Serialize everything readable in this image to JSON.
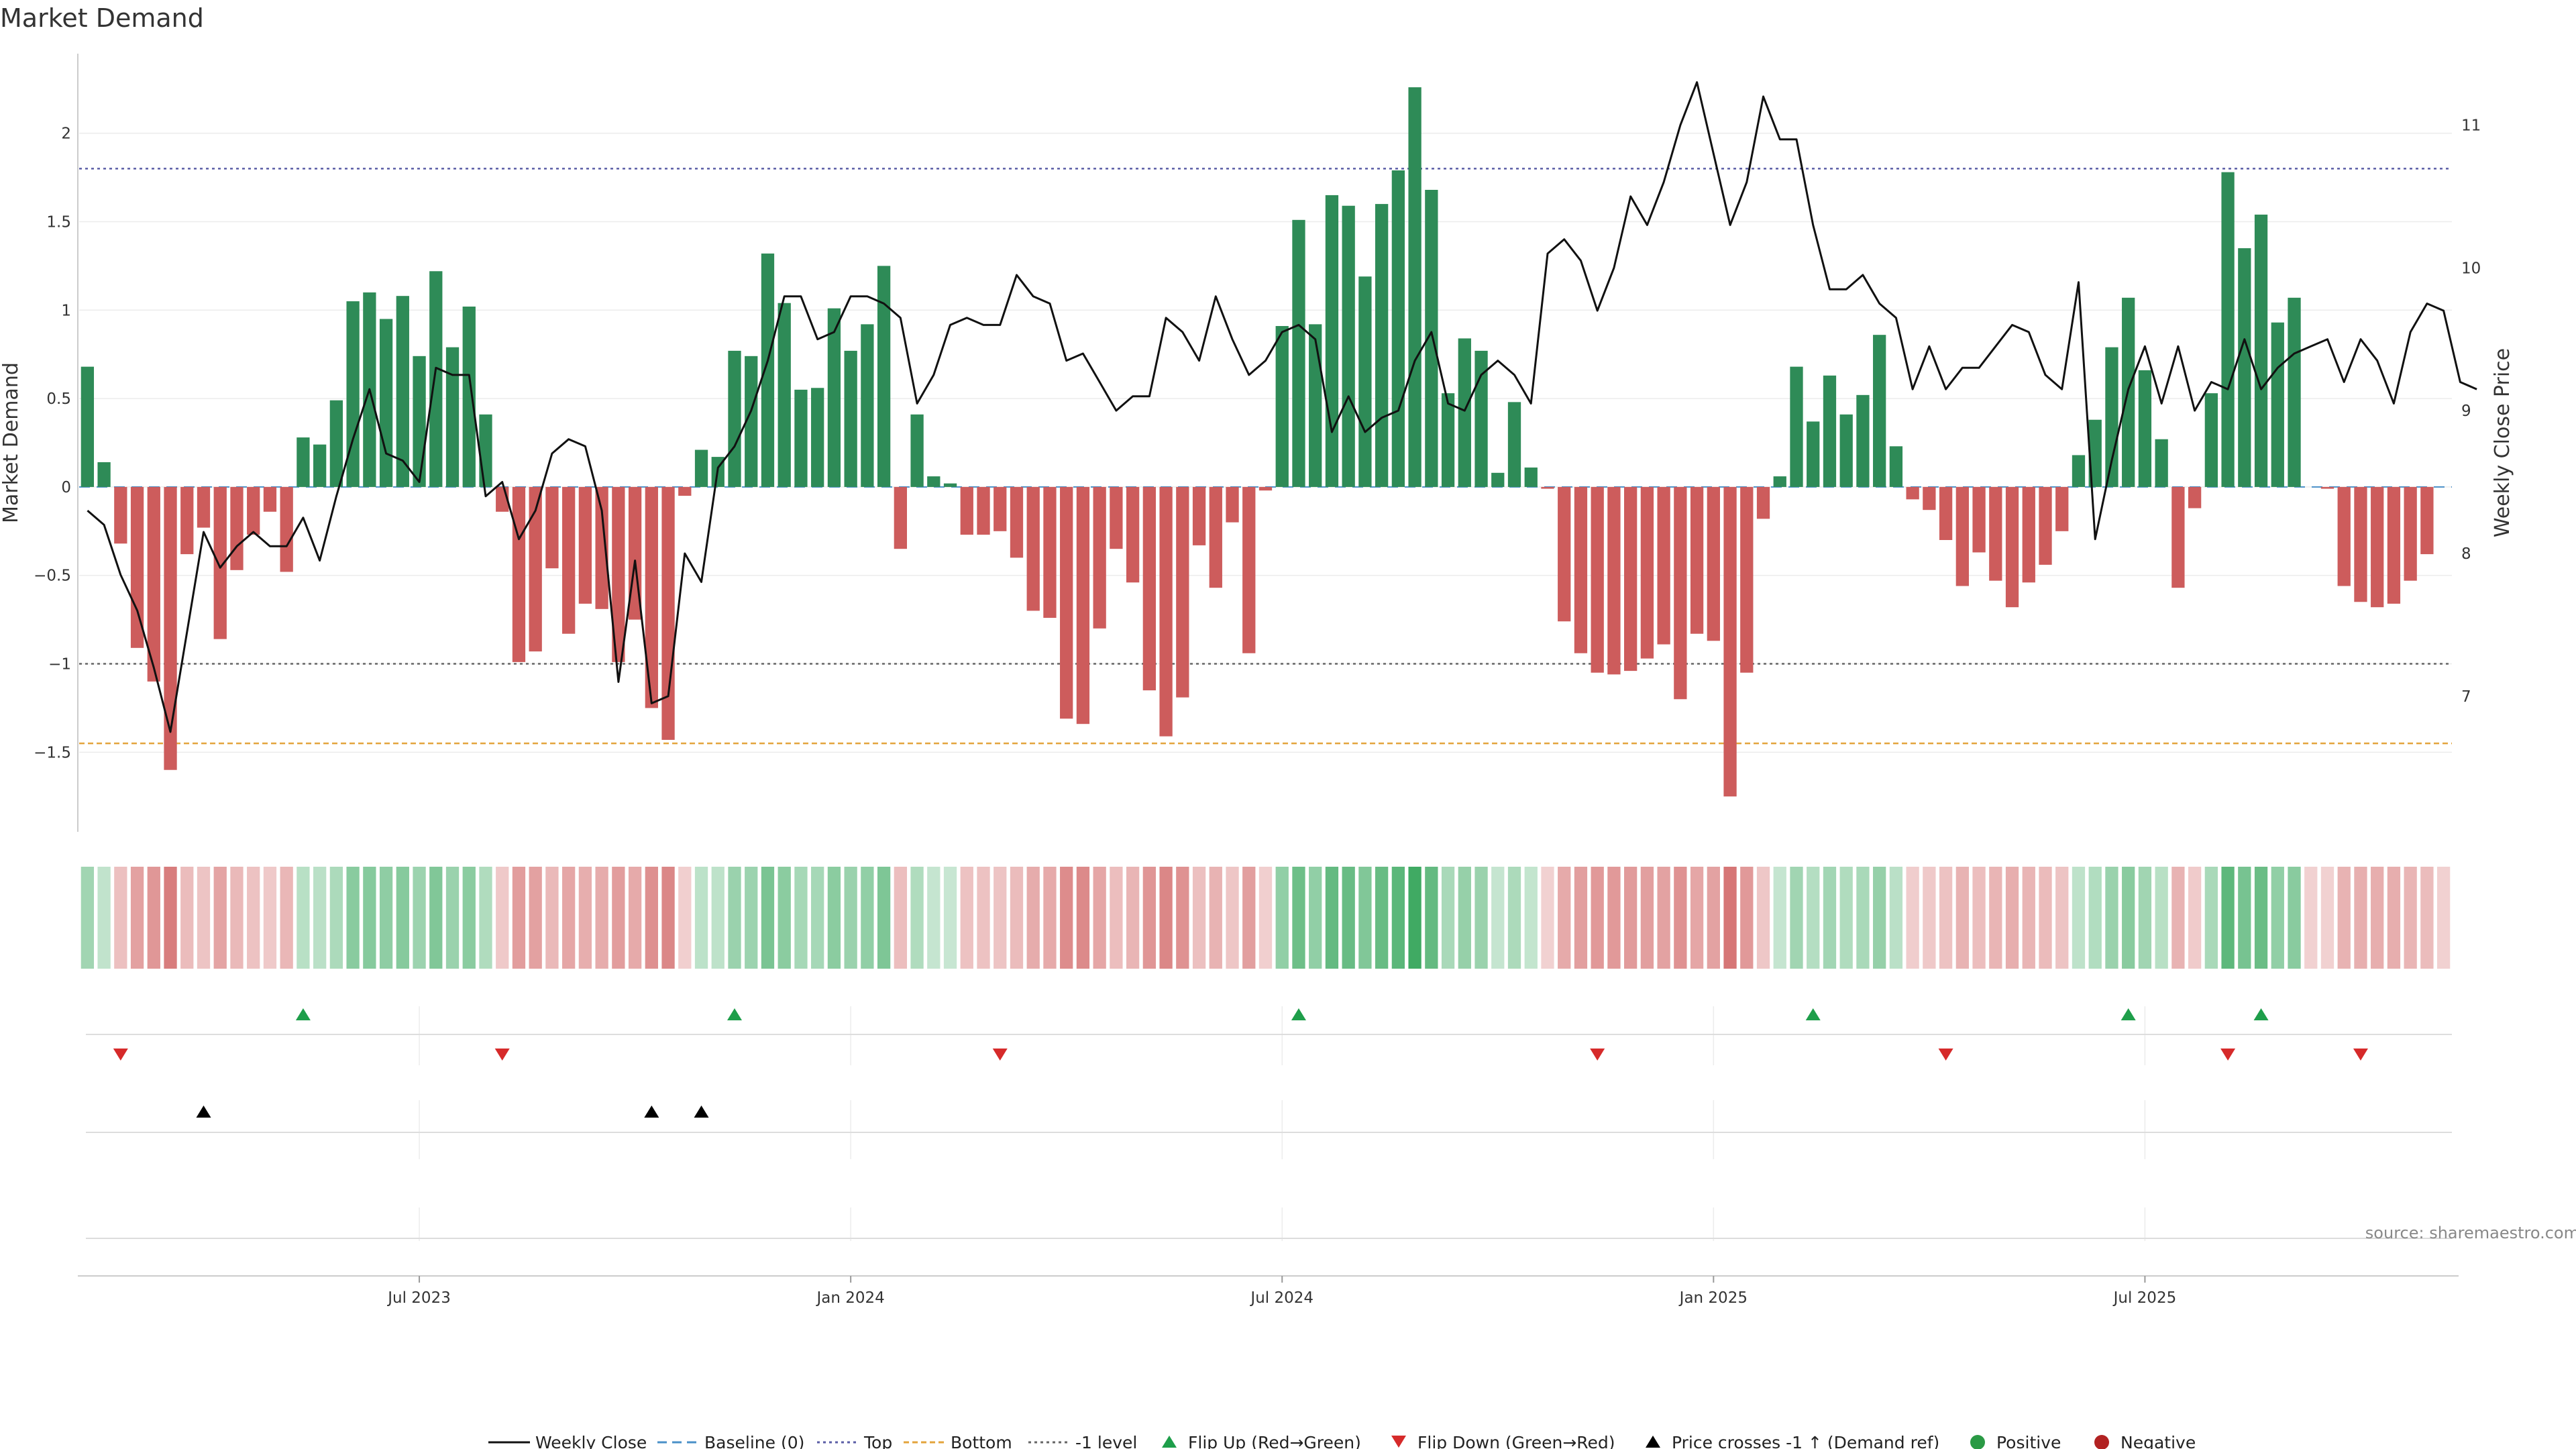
{
  "chart_data": {
    "type": "bar+line",
    "title": "Market Demand",
    "ylabel_left": "Market Demand",
    "ylabel_right": "Weekly Close Price",
    "ylim_left": [
      -1.95,
      2.45
    ],
    "ylim_right": [
      6.05,
      11.5
    ],
    "yticks_left": [
      -1.5,
      -1,
      -0.5,
      0,
      0.5,
      1,
      1.5,
      2
    ],
    "ytick_labels_left": [
      "−1.5",
      "−1",
      "−0.5",
      "0",
      "0.5",
      "1",
      "1.5",
      "2"
    ],
    "yticks_right": [
      7,
      8,
      9,
      10,
      11
    ],
    "ytick_labels_right": [
      "7",
      "8",
      "9",
      "10",
      "11"
    ],
    "x_ticks": [
      {
        "label": "Jul 2023",
        "week": 20.5
      },
      {
        "label": "Jan 2024",
        "week": 46.5
      },
      {
        "label": "Jul 2024",
        "week": 72.5
      },
      {
        "label": "Jan 2025",
        "week": 98.5
      },
      {
        "label": "Jul 2025",
        "week": 124.5
      }
    ],
    "reference_lines": [
      {
        "name": "Top",
        "value": 1.8,
        "color": "#5b5ea6",
        "style": "dotted"
      },
      {
        "name": "Bottom",
        "value": -1.45,
        "color": "#e3a43c",
        "style": "dashed"
      },
      {
        "name": "-1 level",
        "value": -1,
        "color": "#666666",
        "style": "dotted"
      },
      {
        "name": "Baseline (0)",
        "value": 0,
        "color": "#4a90c8",
        "style": "dashed"
      }
    ],
    "weeks": 143,
    "demand": [
      0.68,
      0.14,
      -0.32,
      -0.91,
      -1.1,
      -1.6,
      -0.38,
      -0.23,
      -0.86,
      -0.47,
      -0.27,
      -0.14,
      -0.48,
      0.28,
      0.24,
      0.49,
      1.05,
      1.1,
      0.95,
      1.08,
      0.74,
      1.22,
      0.79,
      1.02,
      0.41,
      -0.14,
      -0.99,
      -0.93,
      -0.46,
      -0.83,
      -0.66,
      -0.69,
      -0.99,
      -0.75,
      -1.25,
      -1.43,
      -0.05,
      0.21,
      0.17,
      0.77,
      0.74,
      1.32,
      1.04,
      0.55,
      0.56,
      1.01,
      0.77,
      0.92,
      1.25,
      -0.35,
      0.41,
      0.06,
      0.02,
      -0.27,
      -0.27,
      -0.25,
      -0.4,
      -0.7,
      -0.74,
      -1.31,
      -1.34,
      -0.8,
      -0.35,
      -0.54,
      -1.15,
      -1.41,
      -1.19,
      -0.33,
      -0.57,
      -0.2,
      -0.94,
      -0.02,
      0.91,
      1.51,
      0.92,
      1.65,
      1.59,
      1.19,
      1.6,
      1.79,
      2.26,
      1.68,
      0.53,
      0.84,
      0.77,
      0.08,
      0.48,
      0.11,
      -0.01,
      -0.76,
      -0.94,
      -1.05,
      -1.06,
      -1.04,
      -0.97,
      -0.89,
      -1.2,
      -0.83,
      -0.87,
      -1.75,
      -1.05,
      -0.18,
      0.06,
      0.68,
      0.37,
      0.63,
      0.41,
      0.52,
      0.86,
      0.23,
      -0.07,
      -0.13,
      -0.3,
      -0.56,
      -0.37,
      -0.53,
      -0.68,
      -0.54,
      -0.44,
      -0.25,
      0.18,
      0.38,
      0.79,
      1.07,
      0.66,
      0.27,
      -0.57,
      -0.12,
      0.53,
      1.78,
      1.35,
      1.54,
      0.93,
      1.07,
      0,
      -0.01,
      -0.56,
      -0.65,
      -0.68,
      -0.66,
      -0.53,
      -0.38,
      0
    ],
    "close_price": [
      8.3,
      8.2,
      7.85,
      7.6,
      7.2,
      6.75,
      7.45,
      8.15,
      7.9,
      8.05,
      8.15,
      8.05,
      8.05,
      8.25,
      7.95,
      8.4,
      8.8,
      9.15,
      8.7,
      8.65,
      8.5,
      9.3,
      9.25,
      9.25,
      8.4,
      8.5,
      8.1,
      8.3,
      8.7,
      8.8,
      8.75,
      8.3,
      7.1,
      7.95,
      6.95,
      7.0,
      8.0,
      7.8,
      8.6,
      8.75,
      9.0,
      9.35,
      9.8,
      9.8,
      9.5,
      9.55,
      9.8,
      9.8,
      9.75,
      9.65,
      9.05,
      9.25,
      9.6,
      9.65,
      9.6,
      9.6,
      9.95,
      9.8,
      9.75,
      9.35,
      9.4,
      9.2,
      9.0,
      9.1,
      9.1,
      9.65,
      9.55,
      9.35,
      9.8,
      9.5,
      9.25,
      9.35,
      9.55,
      9.6,
      9.5,
      8.85,
      9.1,
      8.85,
      8.95,
      9.0,
      9.35,
      9.55,
      9.05,
      9.0,
      9.25,
      9.35,
      9.25,
      9.05,
      10.1,
      10.2,
      10.05,
      9.7,
      10.0,
      10.5,
      10.3,
      10.6,
      11.0,
      11.3,
      10.8,
      10.3,
      10.6,
      11.2,
      10.9,
      10.9,
      10.3,
      9.85,
      9.85,
      9.95,
      9.75,
      9.65,
      9.15,
      9.45,
      9.15,
      9.3,
      9.3,
      9.45,
      9.6,
      9.55,
      9.25,
      9.15,
      9.9,
      8.1,
      8.65,
      9.15,
      9.45,
      9.05,
      9.45,
      9.0,
      9.2,
      9.15,
      9.5,
      9.15,
      9.3,
      9.4,
      9.45,
      9.5,
      9.2,
      9.5,
      9.35,
      9.05,
      9.55,
      9.75,
      9.7,
      9.2,
      9.15
    ],
    "flip_up_weeks": [
      13,
      39,
      73,
      104,
      123,
      131
    ],
    "flip_down_weeks": [
      2,
      25,
      55,
      91,
      112,
      129,
      137
    ],
    "price_cross_weeks": [
      7,
      34,
      37
    ],
    "legend": [
      "Weekly Close",
      "Baseline (0)",
      "Top",
      "Bottom",
      "-1 level",
      "Flip Up (Red→Green)",
      "Flip Down (Green→Red)",
      "Price crosses -1 ↑ (Demand ref)",
      "Positive",
      "Negative"
    ],
    "source": "source: sharemaestro.com"
  }
}
